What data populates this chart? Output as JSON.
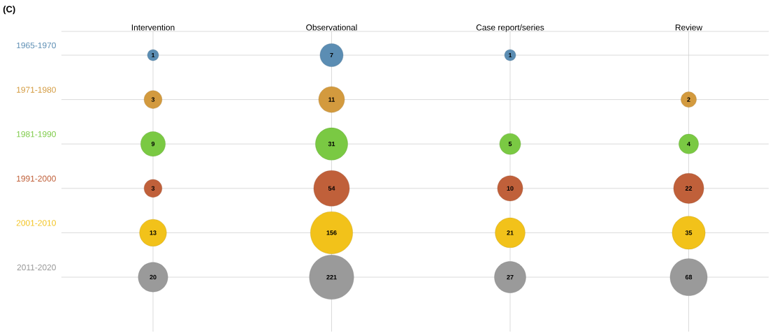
{
  "chart_data": {
    "type": "other",
    "categories": [
      "Intervention",
      "Observational",
      "Case report/series",
      "Review"
    ],
    "series": [
      {
        "name": "1965-1970",
        "color": "#5b8db3",
        "values": [
          1,
          7,
          1,
          null
        ]
      },
      {
        "name": "1971-1980",
        "color": "#d39a3e",
        "values": [
          3,
          11,
          null,
          2
        ]
      },
      {
        "name": "1981-1990",
        "color": "#7ac943",
        "values": [
          9,
          31,
          5,
          4
        ]
      },
      {
        "name": "1991-2000",
        "color": "#c0603a",
        "values": [
          3,
          54,
          10,
          22
        ]
      },
      {
        "name": "2001-2010",
        "color": "#f2c21a",
        "values": [
          13,
          156,
          21,
          35
        ]
      },
      {
        "name": "2011-2020",
        "color": "#9a9a9a",
        "values": [
          20,
          221,
          27,
          68
        ]
      }
    ],
    "data_labels": true,
    "annotations": [
      "(C)"
    ]
  }
}
